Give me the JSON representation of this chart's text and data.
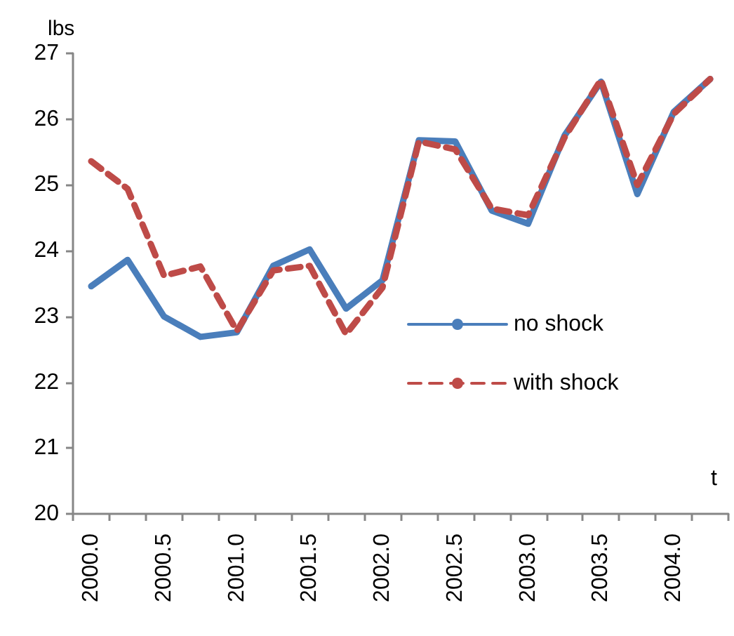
{
  "chart_data": {
    "type": "line",
    "xlabel": "t",
    "ylabel": "lbs",
    "categories": [
      "2000.0",
      null,
      "2000.5",
      null,
      "2001.0",
      null,
      "2001.5",
      null,
      "2002.0",
      null,
      "2002.5",
      null,
      "2003.0",
      null,
      "2003.5",
      null,
      "2004.0",
      null
    ],
    "series": [
      {
        "name": "no shock",
        "color": "#4a7ebb",
        "line_style": "solid",
        "values": [
          23.46,
          23.86,
          23.0,
          22.69,
          22.76,
          23.77,
          24.02,
          23.12,
          23.55,
          25.68,
          25.66,
          24.61,
          24.41,
          25.75,
          26.57,
          24.86,
          26.11,
          26.61
        ]
      },
      {
        "name": "with shock",
        "color": "#be4b48",
        "line_style": "dashed",
        "values": [
          25.36,
          24.94,
          23.62,
          23.76,
          22.78,
          23.7,
          23.77,
          22.73,
          23.44,
          25.66,
          25.54,
          24.64,
          24.54,
          25.72,
          26.6,
          25.0,
          26.08,
          26.61
        ]
      }
    ],
    "ylim": [
      20,
      27
    ],
    "yticks": [
      20,
      21,
      22,
      23,
      24,
      25,
      26,
      27
    ],
    "grid": false,
    "legend": "right",
    "marker": "none"
  }
}
